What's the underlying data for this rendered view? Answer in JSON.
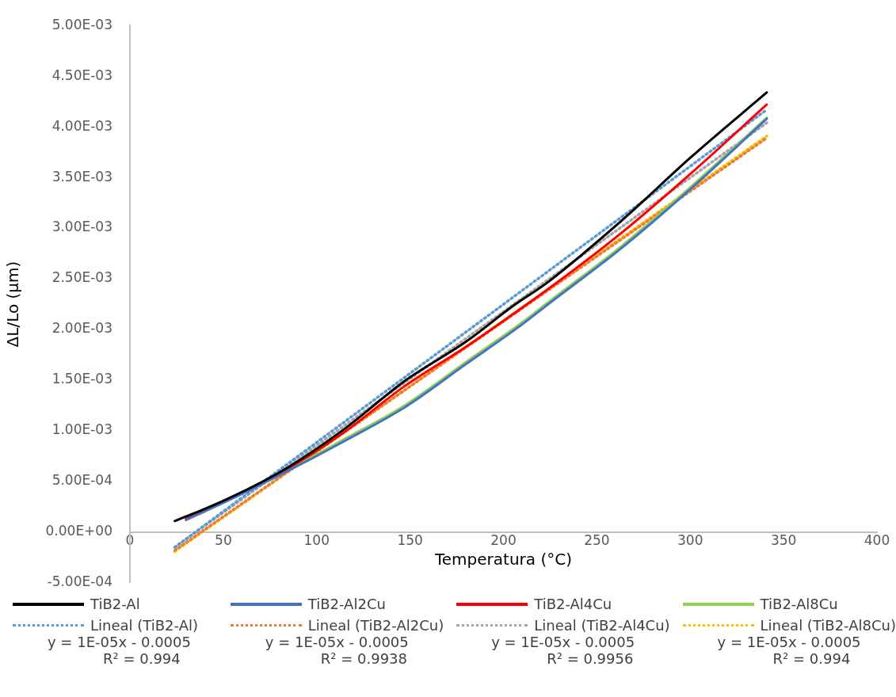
{
  "chart_data": {
    "type": "line",
    "xlabel": "Temperatura (°C)",
    "ylabel": "ΔL/Lo (µm)",
    "xlim": [
      0,
      400
    ],
    "xticks": [
      0,
      50,
      100,
      150,
      200,
      250,
      300,
      350,
      400
    ],
    "ylim": [
      -0.0005,
      0.005
    ],
    "yticks": [
      {
        "value": -0.0005,
        "label": "-5.00E-04"
      },
      {
        "value": 0,
        "label": "0.00E+00"
      },
      {
        "value": 0.0005,
        "label": "5.00E-04"
      },
      {
        "value": 0.001,
        "label": "1.00E-03"
      },
      {
        "value": 0.0015,
        "label": "1.50E-03"
      },
      {
        "value": 0.002,
        "label": "2.00E-03"
      },
      {
        "value": 0.0025,
        "label": "2.50E-03"
      },
      {
        "value": 0.003,
        "label": "3.00E-03"
      },
      {
        "value": 0.0035,
        "label": "3.50E-03"
      },
      {
        "value": 0.004,
        "label": "4.00E-03"
      },
      {
        "value": 0.0045,
        "label": "4.50E-03"
      },
      {
        "value": 0.005,
        "label": "5.00E-03"
      }
    ],
    "grid": false,
    "legend": "bottom",
    "marker": "none",
    "series": [
      {
        "name": "TiB2-Al",
        "color": "#000000",
        "line_style": "solid",
        "x": [
          24,
          49,
          82,
          115,
          147,
          180,
          205,
          224,
          263,
          301,
          341
        ],
        "values": [
          0.00011,
          0.0003,
          0.00061,
          0.00102,
          0.00149,
          0.00188,
          0.00223,
          0.00247,
          0.00307,
          0.00371,
          0.00434
        ]
      },
      {
        "name": "TiB2-Al2Cu",
        "color": "#4472c4",
        "line_style": "solid",
        "x": [
          30,
          49,
          82,
          115,
          147,
          180,
          210,
          224,
          263,
          301,
          341
        ],
        "values": [
          0.00012,
          0.00028,
          0.00058,
          0.0009,
          0.00123,
          0.00166,
          0.00205,
          0.00225,
          0.0028,
          0.0034,
          0.00408
        ]
      },
      {
        "name": "TiB2-Al4Cu",
        "color": "#ff0000",
        "line_style": "solid",
        "x": [
          30,
          82,
          115,
          147,
          180,
          205,
          224,
          263,
          301,
          341
        ],
        "values": [
          0.00013,
          0.0006,
          0.00099,
          0.00144,
          0.00183,
          0.00215,
          0.0024,
          0.00295,
          0.00355,
          0.00422
        ]
      },
      {
        "name": "TiB2-Al8Cu",
        "color": "#92d050",
        "line_style": "solid",
        "x": [
          30,
          49,
          82,
          115,
          147,
          180,
          210,
          224,
          263,
          301,
          341
        ],
        "values": [
          0.00012,
          0.00029,
          0.00059,
          0.00092,
          0.00125,
          0.00168,
          0.00207,
          0.00227,
          0.00282,
          0.00342,
          0.00409
        ]
      },
      {
        "name": "Lineal (TiB2-Al)",
        "color": "#5b9bd5",
        "line_style": "dotted",
        "x": [
          24,
          341
        ],
        "values": [
          -0.00015,
          0.00417
        ]
      },
      {
        "name": "Lineal (TiB2-Al2Cu)",
        "color": "#ed7d31",
        "line_style": "dotted",
        "x": [
          24,
          341
        ],
        "values": [
          -0.00018,
          0.00389
        ]
      },
      {
        "name": "Lineal (TiB2-Al4Cu)",
        "color": "#a5a5a5",
        "line_style": "dotted",
        "x": [
          24,
          341
        ],
        "values": [
          -0.00015,
          0.00404
        ]
      },
      {
        "name": "Lineal (TiB2-Al8Cu)",
        "color": "#ffc000",
        "line_style": "dotted",
        "x": [
          24,
          341
        ],
        "values": [
          -0.00019,
          0.00391
        ]
      }
    ],
    "annotations": [
      "y = 1E-05x - 0.0005",
      "R² = 0.994",
      "y = 1E-05x - 0.0005",
      "R² = 0.9938",
      "y = 1E-05x - 0.0005",
      "R² = 0.9956",
      "y = 1E-05x - 0.0005",
      "R² = 0.994"
    ]
  }
}
